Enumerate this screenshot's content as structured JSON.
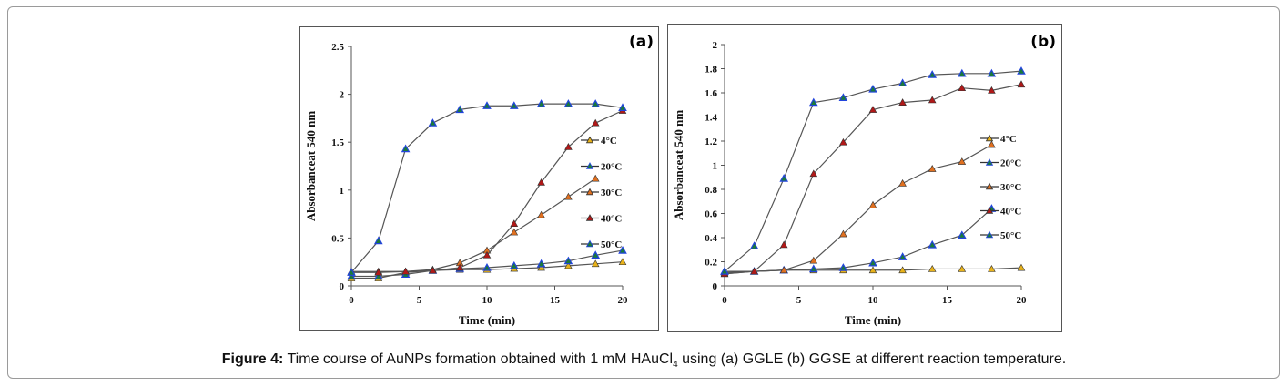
{
  "caption": {
    "label": "Figure 4:",
    "text_before_sub": " Time course of AuNPs formation obtained with 1 mM HAuCl",
    "subscript": "4",
    "text_after_sub": " using (a) GGLE (b) GGSE at different reaction temperature."
  },
  "colors": {
    "line": "#555555",
    "axis": "#555555",
    "marker_4C": "#e8b21a",
    "marker_20C": "#1f3fd6",
    "marker_30C": "#e07020",
    "marker_40C": "#b01818",
    "marker_50C": "#1f3fd6",
    "marker_outline_blue": "#2244dd",
    "marker_fill_green": "#1a7a3a"
  },
  "chart_data": [
    {
      "id": "a",
      "panel_label": "(a)",
      "type": "line",
      "title": "",
      "xlabel": "Time (min)",
      "ylabel": "Absorbanceat 540  nm",
      "xlim": [
        0,
        20
      ],
      "ylim": [
        0,
        2.5
      ],
      "xticks": [
        0,
        5,
        10,
        15,
        20
      ],
      "yticks": [
        0,
        0.5,
        1,
        1.5,
        2,
        2.5
      ],
      "ytick_labels": [
        "0",
        "0.5",
        "1",
        "1.5",
        "2",
        "2.5"
      ],
      "grid": false,
      "legend_position": "right",
      "series": [
        {
          "name": "4°C",
          "color_key": "marker_4C",
          "x": [
            0,
            2,
            4,
            6,
            8,
            10,
            12,
            14,
            16,
            18,
            20
          ],
          "values": [
            0.08,
            0.08,
            0.14,
            0.16,
            0.17,
            0.17,
            0.18,
            0.19,
            0.21,
            0.23,
            0.25
          ]
        },
        {
          "name": "20°C",
          "color_key": "marker_20C",
          "x": [
            0,
            2,
            4,
            6,
            8,
            10,
            12,
            14,
            16,
            18,
            20
          ],
          "values": [
            0.1,
            0.1,
            0.12,
            0.16,
            0.18,
            0.19,
            0.21,
            0.23,
            0.26,
            0.32,
            0.37
          ]
        },
        {
          "name": "30°C",
          "color_key": "marker_30C",
          "x": [
            0,
            2,
            4,
            6,
            8,
            10,
            12,
            14,
            16,
            18
          ],
          "values": [
            0.15,
            0.15,
            0.15,
            0.17,
            0.24,
            0.37,
            0.56,
            0.74,
            0.93,
            1.12
          ]
        },
        {
          "name": "40°C",
          "color_key": "marker_40C",
          "x": [
            0,
            2,
            4,
            6,
            8,
            10,
            12,
            14,
            16,
            18,
            20
          ],
          "values": [
            0.14,
            0.14,
            0.15,
            0.16,
            0.19,
            0.32,
            0.65,
            1.08,
            1.45,
            1.7,
            1.83
          ]
        },
        {
          "name": "50°C",
          "color_key": "marker_50C",
          "x": [
            0,
            2,
            4,
            6,
            8,
            10,
            12,
            14,
            16,
            18,
            20
          ],
          "values": [
            0.14,
            0.47,
            1.43,
            1.7,
            1.84,
            1.88,
            1.88,
            1.9,
            1.9,
            1.9,
            1.86
          ]
        }
      ]
    },
    {
      "id": "b",
      "panel_label": "(b)",
      "type": "line",
      "title": "",
      "xlabel": "Time (min)",
      "ylabel": "Absorbanceat 540  nm",
      "xlim": [
        0,
        20
      ],
      "ylim": [
        0,
        2
      ],
      "xticks": [
        0,
        5,
        10,
        15,
        20
      ],
      "yticks": [
        0,
        0.2,
        0.4,
        0.6,
        0.8,
        1,
        1.2,
        1.4,
        1.6,
        1.8,
        2
      ],
      "ytick_labels": [
        "0",
        "0.2",
        "0.4",
        "0.6",
        "0.8",
        "1",
        "1.2",
        "1.4",
        "1.6",
        "1.8",
        "2"
      ],
      "grid": false,
      "legend_position": "right",
      "series": [
        {
          "name": "4°C",
          "color_key": "marker_4C",
          "x": [
            0,
            2,
            4,
            6,
            8,
            10,
            12,
            14,
            16,
            18,
            20
          ],
          "values": [
            0.1,
            0.12,
            0.13,
            0.13,
            0.13,
            0.13,
            0.13,
            0.14,
            0.14,
            0.14,
            0.15
          ]
        },
        {
          "name": "20°C",
          "color_key": "marker_20C",
          "x": [
            0,
            2,
            4,
            6,
            8,
            10,
            12,
            14,
            16,
            18
          ],
          "values": [
            0.12,
            0.12,
            0.13,
            0.14,
            0.15,
            0.19,
            0.24,
            0.34,
            0.42,
            0.64
          ]
        },
        {
          "name": "30°C",
          "color_key": "marker_30C",
          "x": [
            0,
            2,
            4,
            6,
            8,
            10,
            12,
            14,
            16,
            18
          ],
          "values": [
            0.11,
            0.12,
            0.13,
            0.21,
            0.43,
            0.67,
            0.85,
            0.97,
            1.03,
            1.17
          ]
        },
        {
          "name": "40°C",
          "color_key": "marker_40C",
          "x": [
            0,
            2,
            4,
            6,
            8,
            10,
            12,
            14,
            16,
            18,
            20
          ],
          "values": [
            0.1,
            0.12,
            0.34,
            0.93,
            1.19,
            1.46,
            1.52,
            1.54,
            1.64,
            1.62,
            1.67
          ]
        },
        {
          "name": "50°C",
          "color_key": "marker_50C",
          "x": [
            0,
            2,
            4,
            6,
            8,
            10,
            12,
            14,
            16,
            18,
            20
          ],
          "values": [
            0.12,
            0.33,
            0.89,
            1.52,
            1.56,
            1.63,
            1.68,
            1.75,
            1.76,
            1.76,
            1.78
          ]
        }
      ]
    }
  ]
}
